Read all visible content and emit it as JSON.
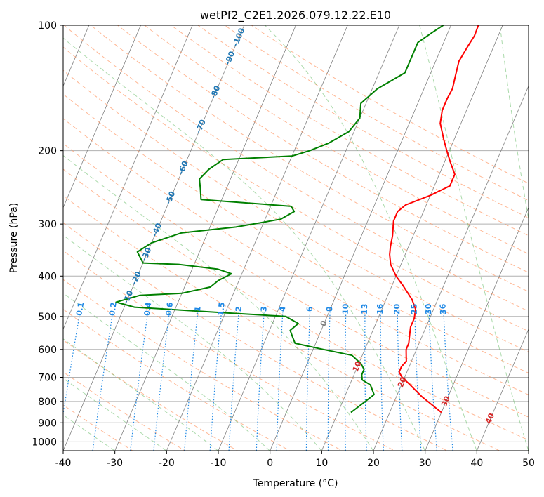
{
  "chart_data": {
    "type": "line",
    "chart_kind": "skew-T log-P sounding",
    "title": "wetPf2_C2E1.2026.079.12.22.E10",
    "xlabel": "Temperature (°C)",
    "ylabel": "Pressure (hPa)",
    "xlim": [
      -40,
      50
    ],
    "ylim": [
      1050,
      100
    ],
    "y_scale": "log",
    "grid": true,
    "x_ticks": [
      -40,
      -30,
      -20,
      -10,
      0,
      10,
      20,
      30,
      40,
      50
    ],
    "y_ticks": [
      100,
      200,
      300,
      400,
      500,
      600,
      700,
      800,
      900,
      1000
    ],
    "series": [
      {
        "color": "#ff0000",
        "points": [
          [
            30,
            850
          ],
          [
            25,
            780
          ],
          [
            21,
            720
          ],
          [
            19.5,
            700
          ],
          [
            18.5,
            680
          ],
          [
            18.5,
            660
          ],
          [
            19,
            640
          ],
          [
            18.5,
            620
          ],
          [
            18,
            600
          ],
          [
            18,
            580
          ],
          [
            17.5,
            555
          ],
          [
            17,
            530
          ],
          [
            17,
            505
          ],
          [
            16.5,
            480
          ],
          [
            15,
            455
          ],
          [
            12,
            420
          ],
          [
            10,
            400
          ],
          [
            8,
            375
          ],
          [
            7,
            355
          ],
          [
            6.5,
            340
          ],
          [
            6,
            320
          ],
          [
            5,
            295
          ],
          [
            5,
            280
          ],
          [
            6,
            270
          ],
          [
            10,
            256
          ],
          [
            13,
            243
          ],
          [
            13,
            228
          ],
          [
            11,
            212
          ],
          [
            9.5,
            200
          ],
          [
            8,
            188
          ],
          [
            6,
            172
          ],
          [
            5.3,
            160
          ],
          [
            5.3,
            150
          ],
          [
            5.5,
            142
          ],
          [
            5,
            132
          ],
          [
            4.5,
            122
          ],
          [
            5,
            112
          ],
          [
            5.4,
            106
          ],
          [
            5.3,
            100
          ]
        ]
      },
      {
        "color": "#008000",
        "points": [
          [
            12.5,
            850
          ],
          [
            14,
            810
          ],
          [
            15.5,
            770
          ],
          [
            14,
            730
          ],
          [
            12,
            710
          ],
          [
            11.5,
            690
          ],
          [
            11.5,
            670
          ],
          [
            10.5,
            650
          ],
          [
            8,
            620
          ],
          [
            2,
            600
          ],
          [
            -4,
            580
          ],
          [
            -5,
            560
          ],
          [
            -6,
            540
          ],
          [
            -5,
            520
          ],
          [
            -8,
            500
          ],
          [
            -20,
            490
          ],
          [
            -38,
            475
          ],
          [
            -42,
            462
          ],
          [
            -38,
            445
          ],
          [
            -30,
            440
          ],
          [
            -25,
            425
          ],
          [
            -24,
            410
          ],
          [
            -22,
            395
          ],
          [
            -25,
            385
          ],
          [
            -33,
            375
          ],
          [
            -40,
            372
          ],
          [
            -42,
            350
          ],
          [
            -40,
            333
          ],
          [
            -35,
            315
          ],
          [
            -25,
            305
          ],
          [
            -17,
            292
          ],
          [
            -15,
            280
          ],
          [
            -16,
            272
          ],
          [
            -34,
            262
          ],
          [
            -35,
            247
          ],
          [
            -36,
            234
          ],
          [
            -35,
            222
          ],
          [
            -33,
            210
          ],
          [
            -20,
            206
          ],
          [
            -17,
            200
          ],
          [
            -14,
            192
          ],
          [
            -11,
            180
          ],
          [
            -10,
            167
          ],
          [
            -11,
            154
          ],
          [
            -9,
            142
          ],
          [
            -5,
            130
          ],
          [
            -5,
            120
          ],
          [
            -5,
            110
          ],
          [
            -3,
            104
          ],
          [
            -1.5,
            100
          ]
        ]
      }
    ],
    "isotherm_labels": [
      {
        "text": "0",
        "t": 0,
        "p": 520
      },
      {
        "text": "10",
        "t": 10,
        "p": 660
      },
      {
        "text": "20",
        "t": 20,
        "p": 720
      },
      {
        "text": "30",
        "t": 30,
        "p": 800
      },
      {
        "text": "40",
        "t": 40,
        "p": 880
      }
    ],
    "isotherm_spacing": 10,
    "dry_adiabat_thetas": [
      -30,
      -20,
      -10,
      0,
      10,
      20,
      30,
      40,
      50,
      60,
      70,
      80,
      90,
      100,
      110,
      120,
      130,
      140,
      150,
      160,
      170,
      180
    ],
    "dry_adiabat_labels": [
      {
        "text": "-100",
        "p": 107
      },
      {
        "text": "-90",
        "p": 120
      },
      {
        "text": "-80",
        "p": 145
      },
      {
        "text": "-70",
        "p": 175
      },
      {
        "text": "-60",
        "p": 220
      },
      {
        "text": "-50",
        "p": 260
      },
      {
        "text": "-40",
        "p": 310
      },
      {
        "text": "-30",
        "p": 355
      },
      {
        "text": "-20",
        "p": 405
      },
      {
        "text": "-10",
        "p": 450
      }
    ],
    "moist_adiabat_thetas": [
      -30,
      -20,
      -10,
      0,
      10,
      20,
      30,
      40,
      50,
      60
    ],
    "mixing_ratio_labels": [
      "0.1",
      "0.2",
      "0.4",
      "0.6",
      "1",
      "1.5",
      "2",
      "3",
      "4",
      "6",
      "8",
      "10",
      "13",
      "16",
      "20",
      "25",
      "30",
      "36"
    ],
    "mixing_ratio_label_pressure": 480,
    "colors": {
      "temperature": "#ff0000",
      "dewpoint": "#008000",
      "isotherm": "#808080",
      "isotherm_label": "#d62728",
      "dry_adiabat": "#ff9966",
      "moist_adiabat": "#66bb66",
      "mixing_ratio": "#1e88e5",
      "dry_adiabat_label": "#1f77b4",
      "mixing_ratio_label": "#1e88e5",
      "grid": "#b0b0b0"
    }
  }
}
